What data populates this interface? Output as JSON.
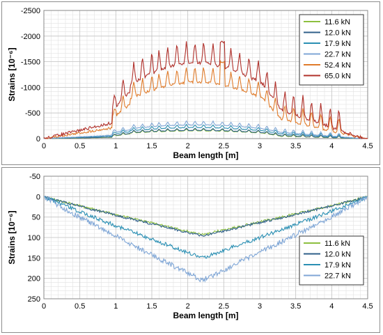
{
  "chart_data": [
    {
      "type": "line",
      "xlabel": "Beam length [m]",
      "ylabel": "Strains [10⁻⁶]",
      "xlim": [
        0,
        4.5
      ],
      "ylim": [
        -2500,
        0
      ],
      "y_inverted": true,
      "x_ticks": [
        "0",
        "0.5",
        "1",
        "1.5",
        "2",
        "2.5",
        "3",
        "3.5",
        "4",
        "4.5"
      ],
      "y_ticks": [
        "-2500",
        "-2000",
        "-1500",
        "-1000",
        "-500",
        "0"
      ],
      "grid": true,
      "legend_position": "top-right",
      "series": [
        {
          "name": "11.6 kN",
          "color": "#8dbf3f",
          "peak": -150,
          "base": -45
        },
        {
          "name": "12.0 kN",
          "color": "#2f5f8a",
          "peak": -160,
          "base": -55
        },
        {
          "name": "17.9 kN",
          "color": "#2a8fb3",
          "peak": -215,
          "base": -90
        },
        {
          "name": "22.7 kN",
          "color": "#7fa6d6",
          "peak": -270,
          "base": -120
        },
        {
          "name": "52.4 kN",
          "color": "#e07b2a",
          "peak": -1100,
          "base": -380
        },
        {
          "name": "65.0 kN",
          "color": "#b0302a",
          "peak": -1480,
          "base": -560
        }
      ],
      "spike_positions_m": [
        0.98,
        1.1,
        1.25,
        1.37,
        1.5,
        1.6,
        1.72,
        1.85,
        1.98,
        2.1,
        2.22,
        2.35,
        2.48,
        2.6,
        2.72,
        2.85,
        2.98,
        3.1,
        3.22,
        3.35,
        3.47,
        3.6,
        3.72,
        3.85,
        3.98,
        4.1
      ],
      "spike_heights": {
        "65.0 kN": -1960,
        "52.4 kN": -1550
      }
    },
    {
      "type": "line",
      "xlabel": "Beam length [m]",
      "ylabel": "Strains [10⁻⁶]",
      "xlim": [
        0,
        4.5
      ],
      "ylim": [
        -50,
        250
      ],
      "y_inverted": true,
      "x_ticks": [
        "0",
        "0.5",
        "1",
        "1.5",
        "2",
        "2.5",
        "3",
        "3.5",
        "4",
        "4.5"
      ],
      "y_ticks": [
        "-50",
        "0",
        "50",
        "100",
        "150",
        "200",
        "250"
      ],
      "grid": true,
      "legend_position": "bottom-right",
      "series": [
        {
          "name": "11.6 kN",
          "color": "#8dbf3f",
          "peak": 93
        },
        {
          "name": "12.0 kN",
          "color": "#2f5f8a",
          "peak": 96
        },
        {
          "name": "17.9 kN",
          "color": "#2a8fb3",
          "peak": 150
        },
        {
          "name": "22.7 kN",
          "color": "#7fa6d6",
          "peak": 205
        }
      ]
    }
  ]
}
